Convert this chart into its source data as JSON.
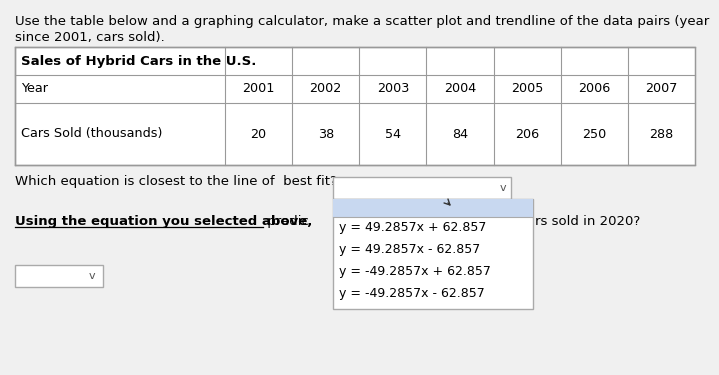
{
  "title_line1": "Use the table below and a graphing calculator, make a scatter plot and trendline of the data pairs (year",
  "title_line2": "since 2001, cars sold).",
  "table_title": "Sales of Hybrid Cars in the U.S.",
  "years": [
    "2001",
    "2002",
    "2003",
    "2004",
    "2005",
    "2006",
    "2007"
  ],
  "cars_sold": [
    "20",
    "38",
    "54",
    "84",
    "206",
    "250",
    "288"
  ],
  "row_label1": "Year",
  "row_label2": "Cars Sold (thousands)",
  "question1": "Which equation is closest to the line of  best fit?",
  "question2_bold": "Using the equation you selected above,",
  "question2_normal": " predic",
  "question2_end": "rs sold in 2020?",
  "dropdown_options": [
    "y = 49.2857x + 62.857",
    "y = 49.2857x - 62.857",
    "y = -49.2857x + 62.857",
    "y = -49.2857x - 62.857"
  ],
  "selected_option_index": 0,
  "bg_color": "#f0f0f0",
  "table_bg": "#ffffff",
  "dropdown_bg": "#ffffff",
  "dropdown_selected_bg": "#c8d8f0",
  "text_color": "#000000"
}
